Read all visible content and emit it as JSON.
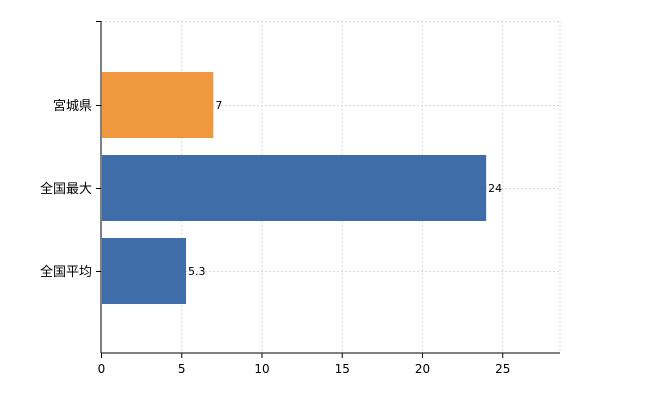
{
  "chart_data": {
    "type": "bar",
    "orientation": "horizontal",
    "categories": [
      "宮城県",
      "全国最大",
      "全国平均"
    ],
    "values": [
      7,
      24,
      5.3
    ],
    "value_labels": [
      "7",
      "24",
      "5.3"
    ],
    "bar_colors": [
      "#F0983E",
      "#3E6DA9",
      "#3E6DA9"
    ],
    "x_ticks": [
      0,
      5,
      10,
      15,
      20,
      25
    ],
    "xlim": [
      0,
      28.6
    ],
    "grid": true,
    "legend": "none",
    "title": "",
    "xlabel": "",
    "ylabel": ""
  }
}
